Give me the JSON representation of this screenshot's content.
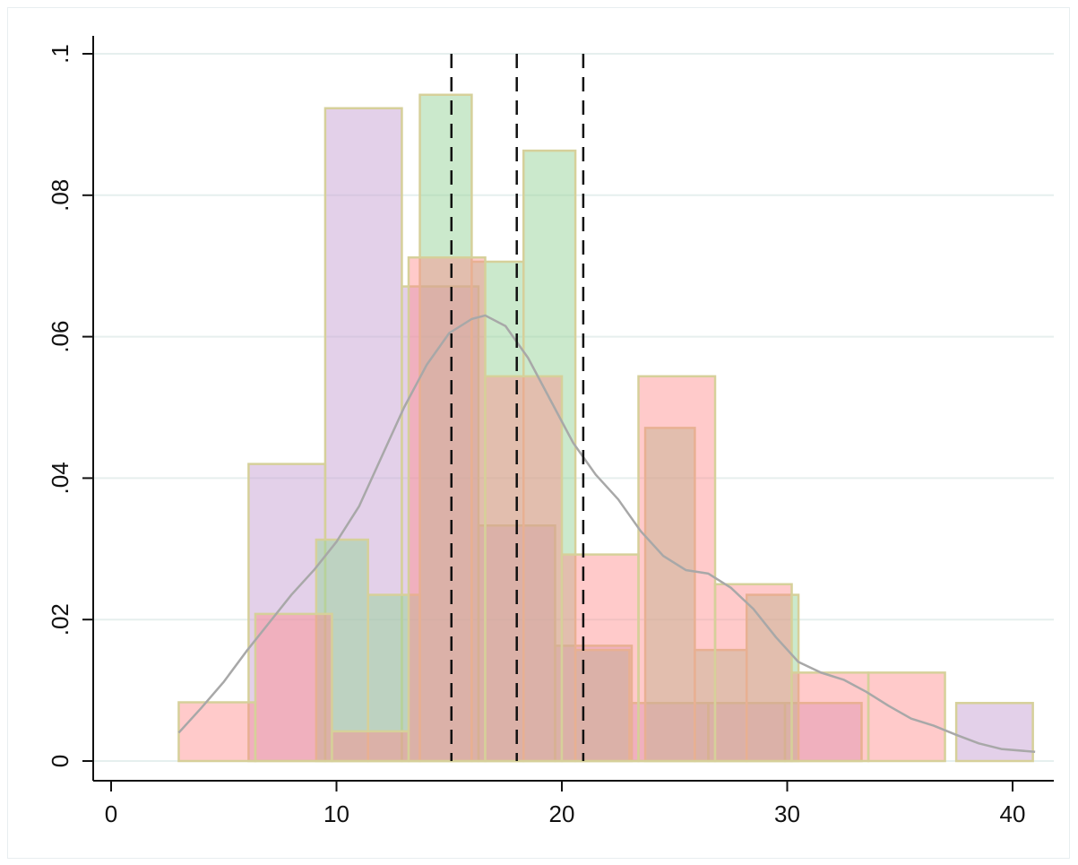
{
  "chart_data": {
    "type": "bar",
    "chart_kind": "overlaid histograms with kernel density curve",
    "title": "",
    "xlabel": "",
    "ylabel": "",
    "xlim": [
      0,
      42
    ],
    "ylim": [
      0,
      0.1
    ],
    "x_ticks": [
      {
        "value": 0,
        "label": "0"
      },
      {
        "value": 10,
        "label": "10"
      },
      {
        "value": 20,
        "label": "20"
      },
      {
        "value": 30,
        "label": "30"
      },
      {
        "value": 40,
        "label": "40"
      }
    ],
    "y_ticks": [
      {
        "value": 0,
        "label": "0"
      },
      {
        "value": 0.02,
        "label": ".02"
      },
      {
        "value": 0.04,
        "label": ".04"
      },
      {
        "value": 0.06,
        "label": ".06"
      },
      {
        "value": 0.08,
        "label": ".08"
      },
      {
        "value": 0.1,
        "label": ".1"
      }
    ],
    "grid": "horizontal",
    "legend": "none",
    "series": [
      {
        "color": "#c8a2d4",
        "opacity": 0.5,
        "bins": [
          {
            "x0": 6.1,
            "x1": 9.5,
            "value": 0.042
          },
          {
            "x0": 9.5,
            "x1": 12.9,
            "value": 0.0923
          },
          {
            "x0": 12.9,
            "x1": 16.3,
            "value": 0.0671
          },
          {
            "x0": 16.3,
            "x1": 19.7,
            "value": 0.0333
          },
          {
            "x0": 19.7,
            "x1": 23.1,
            "value": 0.0163
          },
          {
            "x0": 23.1,
            "x1": 26.5,
            "value": 0.0082
          },
          {
            "x0": 26.5,
            "x1": 29.9,
            "value": 0.0082
          },
          {
            "x0": 29.9,
            "x1": 33.3,
            "value": 0.0082
          },
          {
            "x0": 37.5,
            "x1": 40.9,
            "value": 0.0082
          }
        ]
      },
      {
        "color": "#98d39a",
        "opacity": 0.5,
        "bins": [
          {
            "x0": 9.1,
            "x1": 11.4,
            "value": 0.0313
          },
          {
            "x0": 11.4,
            "x1": 13.7,
            "value": 0.0235
          },
          {
            "x0": 13.7,
            "x1": 16.0,
            "value": 0.0942
          },
          {
            "x0": 16.0,
            "x1": 18.3,
            "value": 0.0706
          },
          {
            "x0": 18.3,
            "x1": 20.6,
            "value": 0.0863
          },
          {
            "x0": 20.6,
            "x1": 23.0,
            "value": 0.0157
          },
          {
            "x0": 23.7,
            "x1": 25.9,
            "value": 0.0471
          },
          {
            "x0": 25.9,
            "x1": 28.2,
            "value": 0.0157
          },
          {
            "x0": 28.2,
            "x1": 30.5,
            "value": 0.0235
          }
        ]
      },
      {
        "color": "#ff8a8a",
        "opacity": 0.45,
        "bins": [
          {
            "x0": 3.0,
            "x1": 6.4,
            "value": 0.0083
          },
          {
            "x0": 6.4,
            "x1": 9.8,
            "value": 0.0208
          },
          {
            "x0": 9.8,
            "x1": 13.2,
            "value": 0.0042
          },
          {
            "x0": 13.2,
            "x1": 16.6,
            "value": 0.0712
          },
          {
            "x0": 16.6,
            "x1": 20.0,
            "value": 0.0544
          },
          {
            "x0": 20.0,
            "x1": 23.4,
            "value": 0.0292
          },
          {
            "x0": 23.4,
            "x1": 26.8,
            "value": 0.0544
          },
          {
            "x0": 26.8,
            "x1": 30.2,
            "value": 0.025
          },
          {
            "x0": 30.2,
            "x1": 33.6,
            "value": 0.0125
          },
          {
            "x0": 33.6,
            "x1": 37.0,
            "value": 0.0125
          }
        ]
      }
    ],
    "density_curve": {
      "color": "#a8a8a8",
      "points": [
        [
          3.0,
          0.004
        ],
        [
          4.0,
          0.0075
        ],
        [
          5.0,
          0.0112
        ],
        [
          6.0,
          0.0155
        ],
        [
          7.0,
          0.0195
        ],
        [
          8.0,
          0.0235
        ],
        [
          9.0,
          0.027
        ],
        [
          10.0,
          0.031
        ],
        [
          11.0,
          0.036
        ],
        [
          12.0,
          0.043
        ],
        [
          13.0,
          0.05
        ],
        [
          14.0,
          0.056
        ],
        [
          15.0,
          0.0605
        ],
        [
          16.0,
          0.0625
        ],
        [
          16.6,
          0.063
        ],
        [
          17.5,
          0.0615
        ],
        [
          18.5,
          0.057
        ],
        [
          19.5,
          0.051
        ],
        [
          20.5,
          0.045
        ],
        [
          21.5,
          0.0405
        ],
        [
          22.5,
          0.037
        ],
        [
          23.5,
          0.0325
        ],
        [
          24.5,
          0.029
        ],
        [
          25.5,
          0.027
        ],
        [
          26.5,
          0.0265
        ],
        [
          27.5,
          0.0245
        ],
        [
          28.5,
          0.0215
        ],
        [
          29.5,
          0.0175
        ],
        [
          30.5,
          0.014
        ],
        [
          31.5,
          0.0125
        ],
        [
          32.5,
          0.0115
        ],
        [
          33.5,
          0.0098
        ],
        [
          34.5,
          0.0078
        ],
        [
          35.5,
          0.006
        ],
        [
          36.5,
          0.005
        ],
        [
          37.5,
          0.0037
        ],
        [
          38.5,
          0.0025
        ],
        [
          39.5,
          0.0017
        ],
        [
          41.0,
          0.0013
        ]
      ]
    },
    "reference_lines": [
      {
        "x": 15.1,
        "style": "dashed",
        "color": "#111111"
      },
      {
        "x": 18.0,
        "style": "dashed",
        "color": "#111111"
      },
      {
        "x": 20.95,
        "style": "dashed",
        "color": "#111111"
      }
    ],
    "bar_stroke_color": "#d6d09a"
  }
}
